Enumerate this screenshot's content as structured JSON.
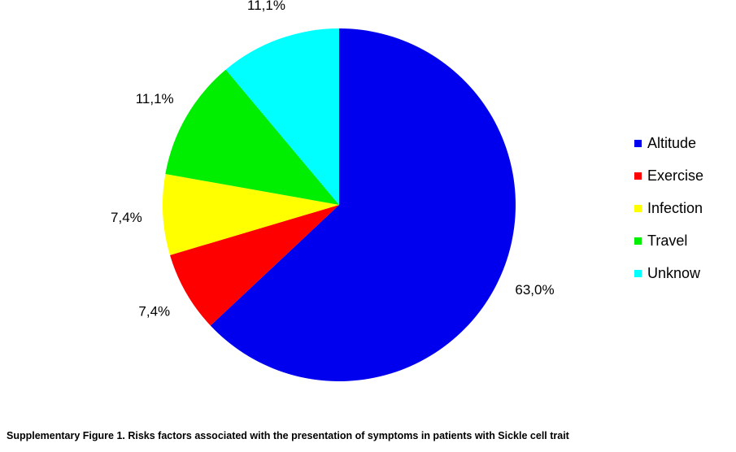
{
  "chart_data": {
    "type": "pie",
    "title": "",
    "slices": [
      {
        "label": "Altitude",
        "value": 63.0,
        "display": "63,0%",
        "color": "#0000EE"
      },
      {
        "label": "Exercise",
        "value": 7.4,
        "display": "7,4%",
        "color": "#FF0000"
      },
      {
        "label": "Infection",
        "value": 7.4,
        "display": "7,4%",
        "color": "#FFFF00"
      },
      {
        "label": "Travel",
        "value": 11.1,
        "display": "11,1%",
        "color": "#00EE00"
      },
      {
        "label": "Unknow",
        "value": 11.1,
        "display": "11,1%",
        "color": "#00FFFF"
      }
    ],
    "start_angle_deg": 0,
    "direction": "clockwise",
    "legend_position": "right"
  },
  "caption": "Supplementary Figure 1. Risks factors associated with the presentation of symptoms in patients with Sickle cell trait"
}
